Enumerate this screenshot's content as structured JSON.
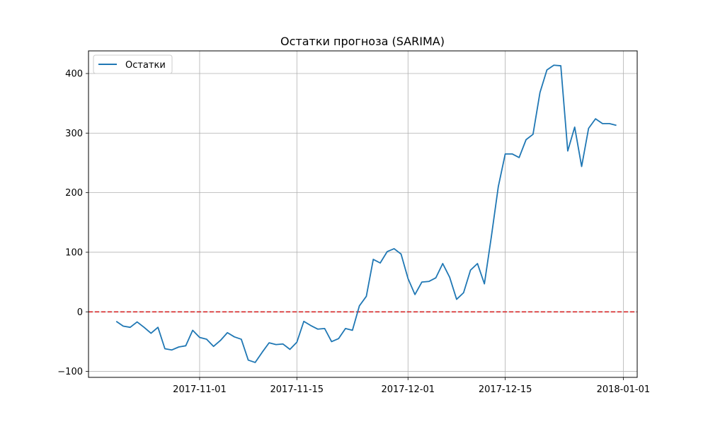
{
  "chart_data": {
    "type": "line",
    "title": "Остатки прогноза (SARIMA)",
    "xlabel": "",
    "ylabel": "",
    "xlim": [
      "2017-10-16",
      "2018-01-03"
    ],
    "ylim": [
      -110,
      438
    ],
    "x_ticks": [
      "2017-11-01",
      "2017-11-15",
      "2017-12-01",
      "2017-12-15",
      "2018-01-01"
    ],
    "y_ticks": [
      -100,
      0,
      100,
      200,
      300,
      400
    ],
    "grid": true,
    "legend": {
      "placement": "top-left",
      "entries": [
        "Остатки"
      ]
    },
    "series": [
      {
        "name": "Остатки",
        "color": "#1f77b4",
        "x": [
          "2017-10-20",
          "2017-10-21",
          "2017-10-22",
          "2017-10-23",
          "2017-10-24",
          "2017-10-25",
          "2017-10-26",
          "2017-10-27",
          "2017-10-28",
          "2017-10-29",
          "2017-10-30",
          "2017-10-31",
          "2017-11-01",
          "2017-11-02",
          "2017-11-03",
          "2017-11-04",
          "2017-11-05",
          "2017-11-06",
          "2017-11-07",
          "2017-11-08",
          "2017-11-09",
          "2017-11-10",
          "2017-11-11",
          "2017-11-12",
          "2017-11-13",
          "2017-11-14",
          "2017-11-15",
          "2017-11-16",
          "2017-11-17",
          "2017-11-18",
          "2017-11-19",
          "2017-11-20",
          "2017-11-21",
          "2017-11-22",
          "2017-11-23",
          "2017-11-24",
          "2017-11-25",
          "2017-11-26",
          "2017-11-27",
          "2017-11-28",
          "2017-11-29",
          "2017-11-30",
          "2017-12-01",
          "2017-12-02",
          "2017-12-03",
          "2017-12-04",
          "2017-12-05",
          "2017-12-06",
          "2017-12-07",
          "2017-12-08",
          "2017-12-09",
          "2017-12-10",
          "2017-12-11",
          "2017-12-12",
          "2017-12-13",
          "2017-12-14",
          "2017-12-15",
          "2017-12-16",
          "2017-12-17",
          "2017-12-18",
          "2017-12-19",
          "2017-12-20",
          "2017-12-21",
          "2017-12-22",
          "2017-12-23",
          "2017-12-24",
          "2017-12-25",
          "2017-12-26",
          "2017-12-27",
          "2017-12-28",
          "2017-12-29",
          "2017-12-30",
          "2017-12-31"
        ],
        "y": [
          -16,
          -24,
          -26,
          -17,
          -26,
          -36,
          -26,
          -62,
          -64,
          -59,
          -57,
          -31,
          -43,
          -46,
          -58,
          -48,
          -35,
          -42,
          -46,
          -81,
          -85,
          -68,
          -52,
          -55,
          -54,
          -63,
          -51,
          -16,
          -23,
          -29,
          -28,
          -50,
          -45,
          -28,
          -31,
          10,
          26,
          88,
          82,
          101,
          106,
          97,
          56,
          29,
          50,
          51,
          57,
          81,
          58,
          21,
          32,
          70,
          81,
          47,
          126,
          210,
          265,
          265,
          259,
          289,
          298,
          368,
          406,
          414,
          413,
          270,
          310,
          244,
          308,
          324,
          316,
          316,
          313
        ]
      }
    ],
    "reference_line": {
      "y": 0,
      "color": "#d62728",
      "style": "dashed"
    }
  }
}
